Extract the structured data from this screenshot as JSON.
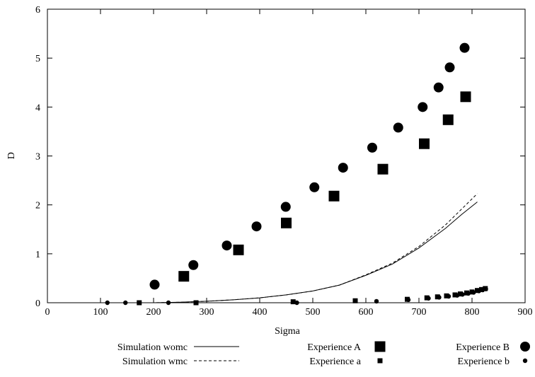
{
  "chart_data": {
    "type": "scatter",
    "title": "",
    "xlabel": "Sigma",
    "ylabel": "D",
    "xlim": [
      0,
      900
    ],
    "ylim": [
      0,
      6
    ],
    "x_ticks": [
      0,
      100,
      200,
      300,
      400,
      500,
      600,
      700,
      800,
      900
    ],
    "y_ticks": [
      0,
      1,
      2,
      3,
      4,
      5,
      6
    ],
    "grid": false,
    "legend_position": "bottom",
    "series": [
      {
        "name": "Simulation womc",
        "kind": "line",
        "style": "solid",
        "x": [
          0,
          100,
          200,
          250,
          300,
          350,
          400,
          450,
          500,
          550,
          600,
          650,
          700,
          750,
          780,
          810
        ],
        "y": [
          0.0,
          0.0,
          0.0,
          0.01,
          0.03,
          0.06,
          0.1,
          0.16,
          0.24,
          0.36,
          0.56,
          0.79,
          1.12,
          1.52,
          1.8,
          2.06
        ]
      },
      {
        "name": "Simulation wmc",
        "kind": "line",
        "style": "dashed",
        "x": [
          0,
          100,
          200,
          250,
          300,
          350,
          400,
          450,
          500,
          550,
          600,
          650,
          700,
          750,
          780,
          810
        ],
        "y": [
          0.0,
          0.0,
          0.0,
          0.01,
          0.03,
          0.06,
          0.1,
          0.16,
          0.24,
          0.36,
          0.57,
          0.81,
          1.15,
          1.59,
          1.91,
          2.23
        ]
      },
      {
        "name": "Experience A",
        "kind": "marker",
        "marker": "square-large",
        "x": [
          257,
          360,
          450,
          540,
          632,
          710,
          755,
          788
        ],
        "y": [
          0.54,
          1.08,
          1.63,
          2.18,
          2.73,
          3.25,
          3.74,
          4.21
        ]
      },
      {
        "name": "Experience a",
        "kind": "marker",
        "marker": "square-small",
        "x": [
          173,
          280,
          463,
          580,
          678,
          715,
          735,
          752,
          768,
          778,
          790,
          800,
          810,
          818,
          825
        ],
        "y": [
          0.0,
          0.0,
          0.02,
          0.04,
          0.07,
          0.1,
          0.12,
          0.14,
          0.16,
          0.18,
          0.2,
          0.22,
          0.25,
          0.27,
          0.29
        ]
      },
      {
        "name": "Experience B",
        "kind": "marker",
        "marker": "circle-large",
        "x": [
          202,
          275,
          338,
          394,
          449,
          503,
          557,
          612,
          661,
          707,
          737,
          758,
          786
        ],
        "y": [
          0.37,
          0.77,
          1.17,
          1.56,
          1.96,
          2.36,
          2.76,
          3.17,
          3.58,
          4.0,
          4.4,
          4.81,
          5.21
        ]
      },
      {
        "name": "Experience b",
        "kind": "marker",
        "marker": "circle-small",
        "x": [
          113,
          147,
          228,
          470,
          620,
          680,
          718,
          738,
          756,
          772,
          782,
          793,
          803,
          813,
          820,
          826
        ],
        "y": [
          0.0,
          0.0,
          0.0,
          0.0,
          0.03,
          0.06,
          0.09,
          0.11,
          0.13,
          0.15,
          0.17,
          0.19,
          0.21,
          0.24,
          0.26,
          0.28
        ]
      }
    ]
  }
}
